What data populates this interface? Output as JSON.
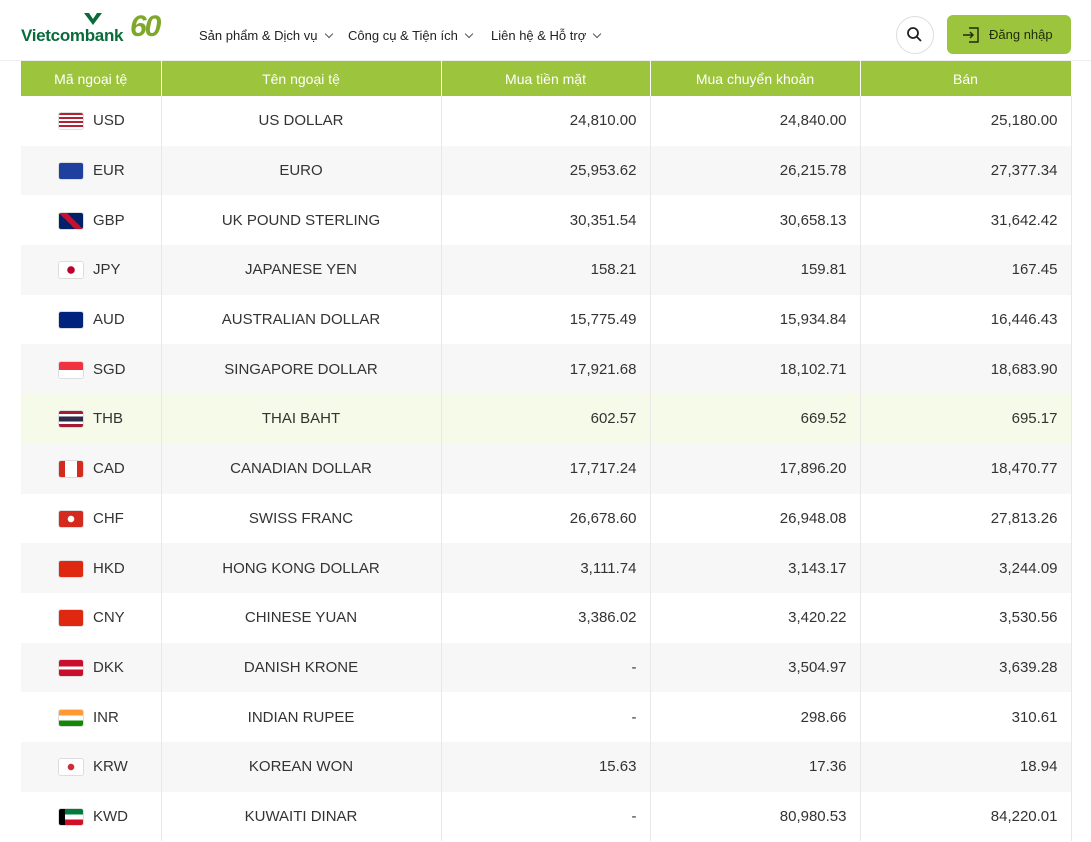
{
  "header": {
    "logo": "Vietcombank",
    "anniversary": "60",
    "nav": [
      "Sản phẩm & Dịch vụ",
      "Công cụ & Tiện ích",
      "Liên hệ & Hỗ trợ"
    ],
    "login": "Đăng nhập"
  },
  "table": {
    "columns": [
      "Mã ngoại tệ",
      "Tên ngoại tệ",
      "Mua tiền mặt",
      "Mua chuyển khoản",
      "Bán"
    ],
    "rows": [
      [
        "USD",
        "US DOLLAR",
        "24,810.00",
        "24,840.00",
        "25,180.00"
      ],
      [
        "EUR",
        "EURO",
        "25,953.62",
        "26,215.78",
        "27,377.34"
      ],
      [
        "GBP",
        "UK POUND STERLING",
        "30,351.54",
        "30,658.13",
        "31,642.42"
      ],
      [
        "JPY",
        "JAPANESE YEN",
        "158.21",
        "159.81",
        "167.45"
      ],
      [
        "AUD",
        "AUSTRALIAN DOLLAR",
        "15,775.49",
        "15,934.84",
        "16,446.43"
      ],
      [
        "SGD",
        "SINGAPORE DOLLAR",
        "17,921.68",
        "18,102.71",
        "18,683.90"
      ],
      [
        "THB",
        "THAI BAHT",
        "602.57",
        "669.52",
        "695.17"
      ],
      [
        "CAD",
        "CANADIAN DOLLAR",
        "17,717.24",
        "17,896.20",
        "18,470.77"
      ],
      [
        "CHF",
        "SWISS FRANC",
        "26,678.60",
        "26,948.08",
        "27,813.26"
      ],
      [
        "HKD",
        "HONG KONG DOLLAR",
        "3,111.74",
        "3,143.17",
        "3,244.09"
      ],
      [
        "CNY",
        "CHINESE YUAN",
        "3,386.02",
        "3,420.22",
        "3,530.56"
      ],
      [
        "DKK",
        "DANISH KRONE",
        "-",
        "3,504.97",
        "3,639.28"
      ],
      [
        "INR",
        "INDIAN RUPEE",
        "-",
        "298.66",
        "310.61"
      ],
      [
        "KRW",
        "KOREAN WON",
        "15.63",
        "17.36",
        "18.94"
      ],
      [
        "KWD",
        "KUWAITI DINAR",
        "-",
        "80,980.53",
        "84,220.01"
      ]
    ]
  }
}
